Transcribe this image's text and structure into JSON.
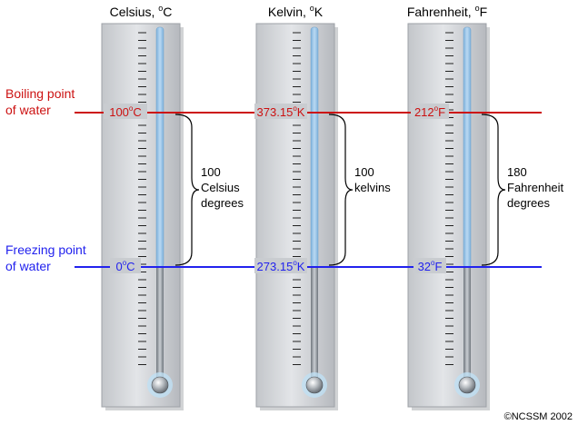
{
  "scales": [
    {
      "id": "celsius",
      "header_name": "Celsius, ",
      "header_deg": "o",
      "header_unit": "C",
      "boiling_num": "100",
      "boiling_deg": "o",
      "boiling_unit": "C",
      "freezing_num": "0",
      "freezing_deg": "o",
      "freezing_unit": "C",
      "span_lines": [
        "100",
        "Celsius",
        "degrees"
      ]
    },
    {
      "id": "kelvin",
      "header_name": "Kelvin, ",
      "header_deg": "o",
      "header_unit": "K",
      "boiling_num": "373.15",
      "boiling_deg": "o",
      "boiling_unit": "K",
      "freezing_num": "273.15",
      "freezing_deg": "o",
      "freezing_unit": "K",
      "span_lines": [
        "100",
        "kelvins"
      ]
    },
    {
      "id": "fahrenheit",
      "header_name": "Fahrenheit, ",
      "header_deg": "o",
      "header_unit": "F",
      "boiling_num": "212",
      "boiling_deg": "o",
      "boiling_unit": "F",
      "freezing_num": "32",
      "freezing_deg": "o",
      "freezing_unit": "F",
      "span_lines": [
        "180",
        "Fahrenheit",
        "degrees"
      ]
    }
  ],
  "boiling": {
    "label_lines": [
      "Boiling point",
      "of water"
    ],
    "color": "#cc1111"
  },
  "freezing": {
    "label_lines": [
      "Freezing point",
      "of water"
    ],
    "color": "#2222ee"
  },
  "mercury_color": "#9cc6e8",
  "copyright": {
    "symbol": "©",
    "text": "NCSSM 2002"
  }
}
